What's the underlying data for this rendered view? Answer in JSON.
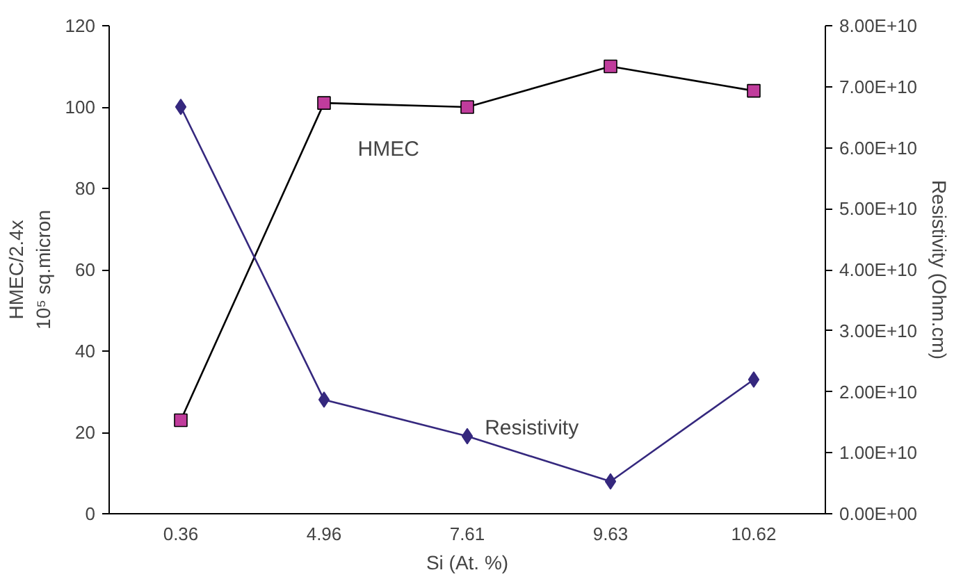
{
  "chart_data": {
    "type": "line",
    "xlabel": "Si (At. %)",
    "ylabel": "HMEC/2.4x\n10⁵ sq.micron",
    "y2label": "Resistivity (Ohm.cm)",
    "categories": [
      "0.36",
      "4.96",
      "7.61",
      "9.63",
      "10.62"
    ],
    "series": [
      {
        "name": "HMEC",
        "color": "#c03c9c",
        "marker": "square",
        "values": [
          23,
          101,
          100,
          110,
          104
        ]
      },
      {
        "name": "Resistivity",
        "color": "#35287e",
        "marker": "diamond",
        "axis": "y2",
        "values": [
          66700000000.0,
          18700000000.0,
          12700000000.0,
          5300000000.0,
          22000000000.0
        ]
      }
    ],
    "ylim": [
      0,
      120
    ],
    "yticks": [
      0,
      20,
      40,
      60,
      80,
      100,
      120
    ],
    "y2lim": [
      0,
      80000000000.0
    ],
    "y2ticks": [
      {
        "value": 0,
        "label": "0.00E+00"
      },
      {
        "value": 10000000000.0,
        "label": "1.00E+10"
      },
      {
        "value": 20000000000.0,
        "label": "2.00E+10"
      },
      {
        "value": 30000000000.0,
        "label": "3.00E+10"
      },
      {
        "value": 40000000000.0,
        "label": "4.00E+10"
      },
      {
        "value": 50000000000.0,
        "label": "5.00E+10"
      },
      {
        "value": 60000000000.0,
        "label": "6.00E+10"
      },
      {
        "value": 70000000000.0,
        "label": "7.00E+10"
      },
      {
        "value": 80000000000.0,
        "label": "8.00E+10"
      }
    ],
    "grid": false
  }
}
